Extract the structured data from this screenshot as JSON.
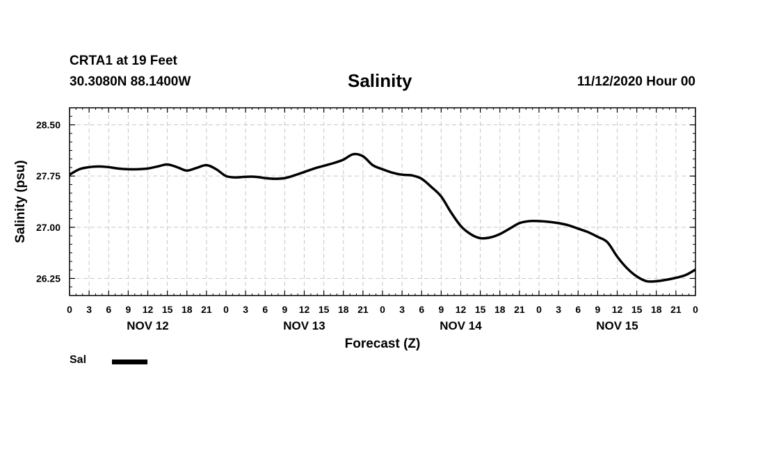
{
  "header": {
    "station": "CRTA1 at 19 Feet",
    "coords": "30.3080N 88.1400W",
    "title": "Salinity",
    "timestamp": "11/12/2020 Hour 00"
  },
  "legend": {
    "label": "Sal",
    "color": "#000000"
  },
  "chart_data": {
    "type": "line",
    "title": "Salinity",
    "xlabel": "Forecast (Z)",
    "ylabel": "Salinity (psu)",
    "xlim": [
      0,
      96
    ],
    "ylim": [
      26.0,
      28.75
    ],
    "grid": true,
    "y_ticks": [
      26.25,
      27.0,
      27.75,
      28.5
    ],
    "y_tick_labels": [
      "26.25",
      "27.00",
      "27.75",
      "28.50"
    ],
    "x_tick_labels": [
      "0",
      "3",
      "6",
      "9",
      "12",
      "15",
      "18",
      "21",
      "0",
      "3",
      "6",
      "9",
      "12",
      "15",
      "18",
      "21",
      "0",
      "3",
      "6",
      "9",
      "12",
      "15",
      "18",
      "21",
      "0",
      "3",
      "6",
      "9",
      "12",
      "15",
      "18",
      "21",
      "0"
    ],
    "day_labels": [
      {
        "label": "NOV 12",
        "hour": 12
      },
      {
        "label": "NOV 13",
        "hour": 36
      },
      {
        "label": "NOV 14",
        "hour": 60
      },
      {
        "label": "NOV 15",
        "hour": 84
      }
    ],
    "series": [
      {
        "name": "Sal",
        "color": "#000000",
        "x": [
          0,
          1.5,
          3,
          4.5,
          6,
          7.5,
          9,
          10.5,
          12,
          13.5,
          15,
          16.5,
          18,
          19.5,
          21,
          22.5,
          24,
          25.5,
          27,
          28.5,
          30,
          31.5,
          33,
          34.5,
          36,
          37.5,
          39,
          40.5,
          42,
          43.5,
          45,
          46.5,
          48,
          49.5,
          51,
          52.5,
          54,
          55.5,
          57,
          58.5,
          60,
          61.5,
          63,
          64.5,
          66,
          67.5,
          69,
          70.5,
          72,
          73.5,
          75,
          76.5,
          78,
          79.5,
          81,
          82.5,
          84,
          85.5,
          87,
          88.5,
          90,
          91.5,
          93,
          94.5,
          96
        ],
        "y": [
          27.77,
          27.85,
          27.88,
          27.89,
          27.88,
          27.86,
          27.85,
          27.85,
          27.86,
          27.89,
          27.92,
          27.88,
          27.83,
          27.87,
          27.91,
          27.85,
          27.75,
          27.73,
          27.74,
          27.74,
          27.72,
          27.71,
          27.72,
          27.76,
          27.81,
          27.86,
          27.9,
          27.94,
          27.99,
          28.07,
          28.04,
          27.91,
          27.85,
          27.8,
          27.77,
          27.76,
          27.71,
          27.59,
          27.45,
          27.22,
          27.02,
          26.9,
          26.84,
          26.85,
          26.9,
          26.98,
          27.06,
          27.09,
          27.09,
          27.08,
          27.06,
          27.03,
          26.98,
          26.93,
          26.86,
          26.78,
          26.57,
          26.4,
          26.28,
          26.21,
          26.21,
          26.23,
          26.26,
          26.3,
          26.38
        ]
      }
    ]
  }
}
